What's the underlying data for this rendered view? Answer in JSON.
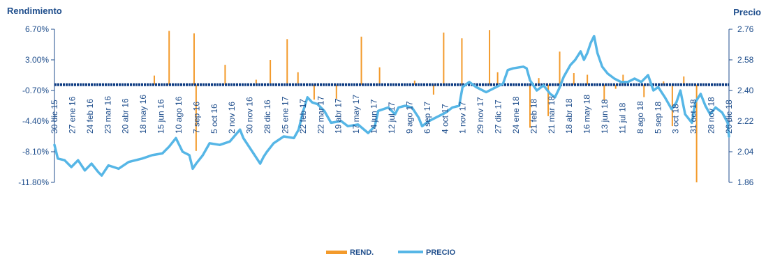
{
  "chart_data": {
    "type": "bar+line",
    "left_axis": {
      "title": "Rendimiento",
      "ticks": [
        "6.70%",
        "3.00%",
        "-0.70%",
        "-4.40%",
        "-8.10%",
        "-11.80%"
      ],
      "tick_values": [
        6.7,
        3.0,
        -0.7,
        -4.4,
        -8.1,
        -11.8
      ],
      "ylim": [
        -11.8,
        6.7
      ]
    },
    "right_axis": {
      "title": "Precio",
      "ticks": [
        "2.76",
        "2.58",
        "2.40",
        "2.22",
        "2.04",
        "1.86"
      ],
      "tick_values": [
        2.76,
        2.58,
        2.4,
        2.22,
        2.04,
        1.86
      ],
      "ylim": [
        1.86,
        2.76
      ]
    },
    "x_ticks": [
      "30 dic 15",
      "27 ene 16",
      "24 feb 16",
      "23 mar 16",
      "20 abr 16",
      "18 may 16",
      "15 jun 16",
      "10 ago 16",
      "7 sep 16",
      "5 oct 16",
      "2 nov 16",
      "30 nov 16",
      "28 dic 16",
      "25 ene 17",
      "22 feb 17",
      "22 mar 17",
      "19 abr 17",
      "17 may 17",
      "14 jun 17",
      "12 jul 17",
      "9 ago 17",
      "6 sep 17",
      "4 oct 17",
      "1 nov 17",
      "29 nov 17",
      "27 dic 17",
      "24 ene 18",
      "21 feb 18",
      "21 mar 18",
      "18 abr 18",
      "16 may 18",
      "13 jun 18",
      "11 jul 18",
      "8 ago 18",
      "5 sep 18",
      "3 oct 18",
      "31 oct 18",
      "28 nov 18",
      "26 dic 18"
    ],
    "series": [
      {
        "name": "REND.",
        "kind": "bar",
        "color": "#f39a2b",
        "axis": "left",
        "points": [
          [
            0.148,
            1.1
          ],
          [
            0.17,
            6.5
          ],
          [
            0.207,
            6.2
          ],
          [
            0.21,
            -8.0
          ],
          [
            0.237,
            -0.1
          ],
          [
            0.253,
            2.4
          ],
          [
            0.299,
            0.6
          ],
          [
            0.32,
            3.0
          ],
          [
            0.345,
            5.5
          ],
          [
            0.361,
            1.5
          ],
          [
            0.385,
            -1.8
          ],
          [
            0.418,
            -1.7
          ],
          [
            0.455,
            5.8
          ],
          [
            0.482,
            2.1
          ],
          [
            0.534,
            0.5
          ],
          [
            0.562,
            -1.2
          ],
          [
            0.577,
            6.3
          ],
          [
            0.604,
            5.6
          ],
          [
            0.645,
            6.6
          ],
          [
            0.657,
            1.5
          ],
          [
            0.705,
            -5.2
          ],
          [
            0.718,
            0.8
          ],
          [
            0.732,
            -3.8
          ],
          [
            0.749,
            4.0
          ],
          [
            0.77,
            1.4
          ],
          [
            0.79,
            1.2
          ],
          [
            0.815,
            -1.9
          ],
          [
            0.832,
            -0.5
          ],
          [
            0.843,
            1.2
          ],
          [
            0.874,
            -1.5
          ],
          [
            0.903,
            0.4
          ],
          [
            0.916,
            -5.0
          ],
          [
            0.933,
            1.0
          ],
          [
            0.952,
            -11.8
          ]
        ]
      },
      {
        "name": "PRECIO",
        "kind": "line",
        "color": "#56b6e6",
        "axis": "right",
        "points": [
          [
            0.0,
            2.08
          ],
          [
            0.005,
            2.0
          ],
          [
            0.015,
            1.99
          ],
          [
            0.025,
            1.95
          ],
          [
            0.035,
            1.99
          ],
          [
            0.045,
            1.93
          ],
          [
            0.055,
            1.97
          ],
          [
            0.065,
            1.92
          ],
          [
            0.07,
            1.9
          ],
          [
            0.08,
            1.96
          ],
          [
            0.095,
            1.94
          ],
          [
            0.11,
            1.98
          ],
          [
            0.13,
            2.0
          ],
          [
            0.145,
            2.02
          ],
          [
            0.16,
            2.03
          ],
          [
            0.17,
            2.07
          ],
          [
            0.18,
            2.12
          ],
          [
            0.19,
            2.04
          ],
          [
            0.2,
            2.02
          ],
          [
            0.205,
            1.94
          ],
          [
            0.21,
            1.97
          ],
          [
            0.22,
            2.02
          ],
          [
            0.23,
            2.09
          ],
          [
            0.245,
            2.08
          ],
          [
            0.26,
            2.1
          ],
          [
            0.275,
            2.17
          ],
          [
            0.28,
            2.12
          ],
          [
            0.295,
            2.03
          ],
          [
            0.305,
            1.97
          ],
          [
            0.31,
            2.01
          ],
          [
            0.315,
            2.04
          ],
          [
            0.325,
            2.09
          ],
          [
            0.34,
            2.13
          ],
          [
            0.355,
            2.12
          ],
          [
            0.362,
            2.17
          ],
          [
            0.368,
            2.27
          ],
          [
            0.375,
            2.36
          ],
          [
            0.382,
            2.33
          ],
          [
            0.39,
            2.32
          ],
          [
            0.4,
            2.28
          ],
          [
            0.41,
            2.21
          ],
          [
            0.425,
            2.22
          ],
          [
            0.435,
            2.19
          ],
          [
            0.45,
            2.2
          ],
          [
            0.465,
            2.15
          ],
          [
            0.475,
            2.19
          ],
          [
            0.48,
            2.28
          ],
          [
            0.495,
            2.3
          ],
          [
            0.505,
            2.26
          ],
          [
            0.51,
            2.3
          ],
          [
            0.52,
            2.31
          ],
          [
            0.53,
            2.3
          ],
          [
            0.54,
            2.24
          ],
          [
            0.545,
            2.19
          ],
          [
            0.555,
            2.22
          ],
          [
            0.57,
            2.25
          ],
          [
            0.58,
            2.27
          ],
          [
            0.59,
            2.3
          ],
          [
            0.6,
            2.31
          ],
          [
            0.605,
            2.42
          ],
          [
            0.615,
            2.45
          ],
          [
            0.625,
            2.42
          ],
          [
            0.64,
            2.39
          ],
          [
            0.655,
            2.42
          ],
          [
            0.665,
            2.44
          ],
          [
            0.672,
            2.52
          ],
          [
            0.68,
            2.53
          ],
          [
            0.695,
            2.54
          ],
          [
            0.7,
            2.53
          ],
          [
            0.705,
            2.46
          ],
          [
            0.715,
            2.4
          ],
          [
            0.725,
            2.43
          ],
          [
            0.735,
            2.38
          ],
          [
            0.742,
            2.36
          ],
          [
            0.748,
            2.41
          ],
          [
            0.755,
            2.48
          ],
          [
            0.765,
            2.55
          ],
          [
            0.772,
            2.58
          ],
          [
            0.78,
            2.63
          ],
          [
            0.785,
            2.58
          ],
          [
            0.79,
            2.62
          ],
          [
            0.795,
            2.68
          ],
          [
            0.8,
            2.72
          ],
          [
            0.805,
            2.62
          ],
          [
            0.812,
            2.54
          ],
          [
            0.82,
            2.5
          ],
          [
            0.83,
            2.47
          ],
          [
            0.84,
            2.45
          ],
          [
            0.85,
            2.45
          ],
          [
            0.86,
            2.47
          ],
          [
            0.87,
            2.45
          ],
          [
            0.88,
            2.49
          ],
          [
            0.888,
            2.4
          ],
          [
            0.895,
            2.42
          ],
          [
            0.905,
            2.36
          ],
          [
            0.915,
            2.29
          ],
          [
            0.922,
            2.33
          ],
          [
            0.928,
            2.4
          ],
          [
            0.935,
            2.26
          ],
          [
            0.945,
            2.21
          ],
          [
            0.95,
            2.33
          ],
          [
            0.958,
            2.38
          ],
          [
            0.965,
            2.31
          ],
          [
            0.972,
            2.26
          ],
          [
            0.98,
            2.3
          ],
          [
            0.99,
            2.27
          ],
          [
            0.998,
            2.21
          ],
          [
            1.0,
            2.13
          ]
        ]
      }
    ],
    "x_encoding": "fraction of date axis between '30 dic 15' and '26 dic 18'"
  },
  "legend": [
    {
      "label": "REND.",
      "color": "#f39a2b",
      "kind": "bar"
    },
    {
      "label": "PRECIO",
      "color": "#56b6e6",
      "kind": "line"
    }
  ]
}
